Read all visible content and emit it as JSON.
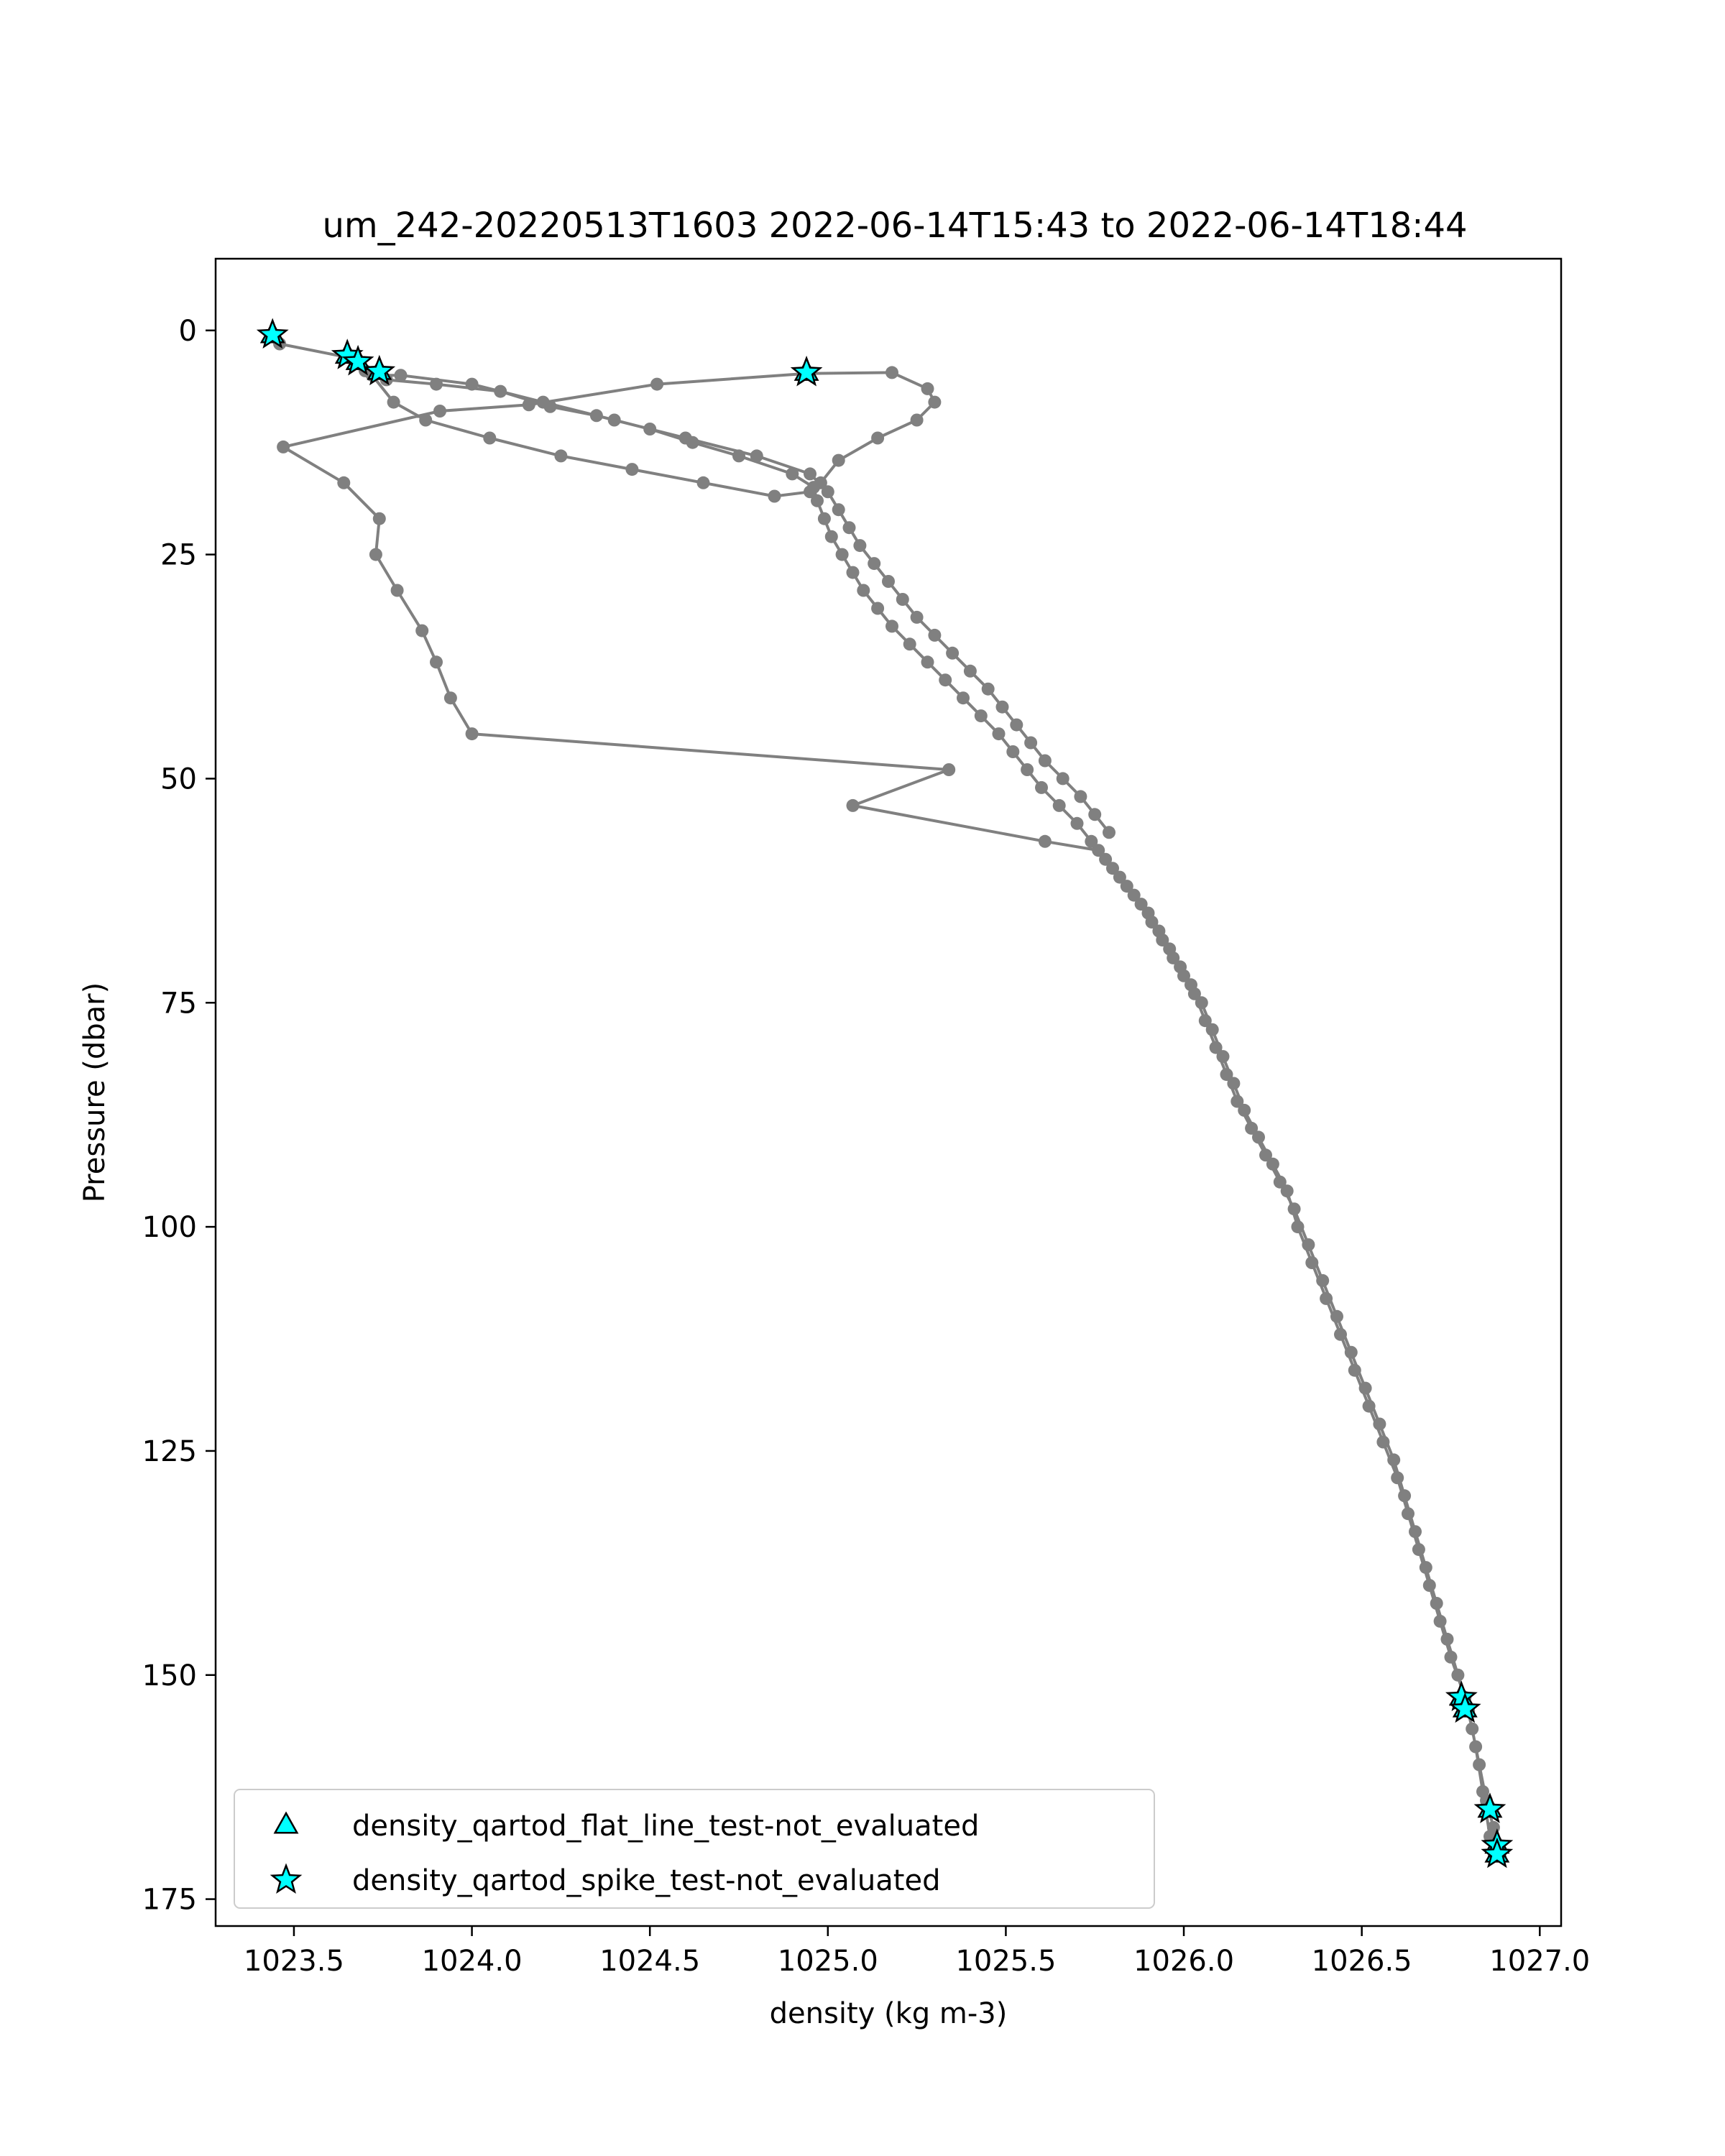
{
  "chart_data": {
    "type": "scatter",
    "title": "um_242-20220513T1603 2022-06-14T15:43 to 2022-06-14T18:44",
    "xlabel": "density (kg m-3)",
    "ylabel": "Pressure (dbar)",
    "xlim": [
      1023.28,
      1027.06
    ],
    "ylim": [
      178,
      -8
    ],
    "y_inverted": true,
    "grid": false,
    "legend_position": "lower left",
    "x_ticks": [
      1023.5,
      1024.0,
      1024.5,
      1025.0,
      1025.5,
      1026.0,
      1026.5,
      1027.0
    ],
    "x_tick_labels": [
      "1023.5",
      "1024.0",
      "1024.5",
      "1025.0",
      "1025.5",
      "1026.0",
      "1026.5",
      "1027.0"
    ],
    "y_ticks": [
      0,
      25,
      50,
      75,
      100,
      125,
      150,
      175
    ],
    "y_tick_labels": [
      "0",
      "25",
      "50",
      "75",
      "100",
      "125",
      "150",
      "175"
    ],
    "profile_color": "#808080",
    "marker_color": "#00ffff",
    "series": [
      {
        "name": "",
        "style": "line-markers",
        "color": "#808080",
        "points": [
          [
            1023.44,
            0.5
          ],
          [
            1023.46,
            1.5
          ],
          [
            1023.65,
            3.0
          ],
          [
            1023.7,
            4.5
          ],
          [
            1023.76,
            5.5
          ],
          [
            1023.9,
            6.0
          ],
          [
            1024.08,
            6.8
          ],
          [
            1024.22,
            8.5
          ],
          [
            1024.35,
            9.5
          ],
          [
            1024.5,
            11.0
          ],
          [
            1024.62,
            12.5
          ],
          [
            1024.75,
            14.0
          ],
          [
            1024.9,
            16.0
          ],
          [
            1024.96,
            17.5
          ],
          [
            1024.97,
            19.0
          ],
          [
            1024.99,
            21.0
          ],
          [
            1025.01,
            23.0
          ],
          [
            1025.04,
            25.0
          ],
          [
            1025.07,
            27.0
          ],
          [
            1025.1,
            29.0
          ],
          [
            1025.14,
            31.0
          ],
          [
            1025.18,
            33.0
          ],
          [
            1025.23,
            35.0
          ],
          [
            1025.28,
            37.0
          ],
          [
            1025.33,
            39.0
          ],
          [
            1025.38,
            41.0
          ],
          [
            1025.43,
            43.0
          ],
          [
            1025.48,
            45.0
          ],
          [
            1025.52,
            47.0
          ],
          [
            1025.56,
            49.0
          ],
          [
            1025.6,
            51.0
          ],
          [
            1025.65,
            53.0
          ],
          [
            1025.7,
            55.0
          ],
          [
            1025.74,
            57.0
          ],
          [
            1025.78,
            59.0
          ],
          [
            1025.82,
            61.0
          ],
          [
            1025.86,
            63.0
          ],
          [
            1025.9,
            65.0
          ],
          [
            1025.93,
            67.0
          ],
          [
            1025.96,
            69.0
          ],
          [
            1025.99,
            71.0
          ],
          [
            1026.02,
            73.0
          ],
          [
            1026.05,
            75.0
          ],
          [
            1026.08,
            78.0
          ],
          [
            1026.11,
            81.0
          ],
          [
            1026.14,
            84.0
          ],
          [
            1026.17,
            87.0
          ],
          [
            1026.21,
            90.0
          ],
          [
            1026.25,
            93.0
          ],
          [
            1026.29,
            96.0
          ],
          [
            1026.32,
            100.0
          ],
          [
            1026.36,
            104.0
          ],
          [
            1026.4,
            108.0
          ],
          [
            1026.44,
            112.0
          ],
          [
            1026.48,
            116.0
          ],
          [
            1026.52,
            120.0
          ],
          [
            1026.56,
            124.0
          ],
          [
            1026.6,
            128.0
          ],
          [
            1026.63,
            132.0
          ],
          [
            1026.66,
            136.0
          ],
          [
            1026.69,
            140.0
          ],
          [
            1026.72,
            144.0
          ],
          [
            1026.75,
            148.0
          ],
          [
            1026.79,
            152.5
          ],
          [
            1026.81,
            156.0
          ],
          [
            1026.83,
            160.0
          ],
          [
            1026.85,
            164.0
          ],
          [
            1026.87,
            167.0
          ],
          [
            1026.88,
            170.0
          ],
          [
            1026.86,
            168.0
          ],
          [
            1026.84,
            163.0
          ],
          [
            1026.82,
            158.0
          ],
          [
            1026.8,
            154.0
          ],
          [
            1026.77,
            150.0
          ],
          [
            1026.74,
            146.0
          ],
          [
            1026.71,
            142.0
          ],
          [
            1026.68,
            138.0
          ],
          [
            1026.65,
            134.0
          ],
          [
            1026.62,
            130.0
          ],
          [
            1026.59,
            126.0
          ],
          [
            1026.55,
            122.0
          ],
          [
            1026.51,
            118.0
          ],
          [
            1026.47,
            114.0
          ],
          [
            1026.43,
            110.0
          ],
          [
            1026.39,
            106.0
          ],
          [
            1026.35,
            102.0
          ],
          [
            1026.31,
            98.0
          ],
          [
            1026.27,
            95.0
          ],
          [
            1026.23,
            92.0
          ],
          [
            1026.19,
            89.0
          ],
          [
            1026.15,
            86.0
          ],
          [
            1026.12,
            83.0
          ],
          [
            1026.09,
            80.0
          ],
          [
            1026.06,
            77.0
          ],
          [
            1026.03,
            74.0
          ],
          [
            1026.0,
            72.0
          ],
          [
            1025.97,
            70.0
          ],
          [
            1025.94,
            68.0
          ],
          [
            1025.91,
            66.0
          ],
          [
            1025.88,
            64.0
          ],
          [
            1025.84,
            62.0
          ],
          [
            1025.8,
            60.0
          ],
          [
            1025.76,
            58.0
          ],
          [
            1025.61,
            57.0
          ],
          [
            1025.07,
            53.0
          ],
          [
            1025.34,
            49.0
          ],
          [
            1024.0,
            45.0
          ],
          [
            1023.94,
            41.0
          ],
          [
            1023.9,
            37.0
          ],
          [
            1023.86,
            33.5
          ],
          [
            1023.79,
            29.0
          ],
          [
            1023.73,
            25.0
          ],
          [
            1023.74,
            21.0
          ],
          [
            1023.64,
            17.0
          ],
          [
            1023.47,
            13.0
          ],
          [
            1023.91,
            9.0
          ],
          [
            1024.16,
            8.3
          ],
          [
            1024.52,
            6.0
          ],
          [
            1024.94,
            4.8
          ],
          [
            1025.18,
            4.7
          ],
          [
            1025.28,
            6.5
          ],
          [
            1025.3,
            8.0
          ],
          [
            1025.25,
            10.0
          ],
          [
            1025.14,
            12.0
          ],
          [
            1025.03,
            14.5
          ],
          [
            1024.98,
            17.0
          ],
          [
            1024.95,
            18.0
          ],
          [
            1024.85,
            18.5
          ],
          [
            1024.65,
            17.0
          ],
          [
            1024.45,
            15.5
          ],
          [
            1024.25,
            14.0
          ],
          [
            1024.05,
            12.0
          ],
          [
            1023.87,
            10.0
          ],
          [
            1023.78,
            8.0
          ],
          [
            1023.72,
            5.0
          ],
          [
            1023.8,
            5.0
          ],
          [
            1024.0,
            6.0
          ],
          [
            1024.2,
            8.0
          ],
          [
            1024.4,
            10.0
          ],
          [
            1024.6,
            12.0
          ],
          [
            1024.8,
            14.0
          ],
          [
            1024.95,
            16.0
          ],
          [
            1025.0,
            18.0
          ],
          [
            1025.03,
            20.0
          ],
          [
            1025.06,
            22.0
          ],
          [
            1025.09,
            24.0
          ],
          [
            1025.13,
            26.0
          ],
          [
            1025.17,
            28.0
          ],
          [
            1025.21,
            30.0
          ],
          [
            1025.25,
            32.0
          ],
          [
            1025.3,
            34.0
          ],
          [
            1025.35,
            36.0
          ],
          [
            1025.4,
            38.0
          ],
          [
            1025.45,
            40.0
          ],
          [
            1025.49,
            42.0
          ],
          [
            1025.53,
            44.0
          ],
          [
            1025.57,
            46.0
          ],
          [
            1025.61,
            48.0
          ],
          [
            1025.66,
            50.0
          ],
          [
            1025.71,
            52.0
          ],
          [
            1025.75,
            54.0
          ],
          [
            1025.79,
            56.0
          ]
        ]
      },
      {
        "name": "density_qartod_flat_line_test-not_evaluated",
        "style": "marker-triangle",
        "color": "#00ffff",
        "points": [
          [
            1023.44,
            0.5
          ],
          [
            1023.65,
            2.8
          ],
          [
            1023.68,
            3.5
          ],
          [
            1023.74,
            4.6
          ],
          [
            1024.94,
            4.7
          ],
          [
            1026.78,
            152.5
          ],
          [
            1026.79,
            153.8
          ],
          [
            1026.86,
            165.0
          ],
          [
            1026.88,
            169.0
          ],
          [
            1026.88,
            170.0
          ]
        ]
      },
      {
        "name": "density_qartod_spike_test-not_evaluated",
        "style": "marker-star",
        "color": "#00ffff",
        "points": [
          [
            1023.44,
            0.5
          ],
          [
            1023.65,
            2.8
          ],
          [
            1023.68,
            3.5
          ],
          [
            1023.74,
            4.6
          ],
          [
            1024.94,
            4.7
          ],
          [
            1026.78,
            152.5
          ],
          [
            1026.79,
            153.8
          ],
          [
            1026.86,
            165.0
          ],
          [
            1026.88,
            169.0
          ],
          [
            1026.88,
            170.0
          ]
        ]
      }
    ]
  }
}
